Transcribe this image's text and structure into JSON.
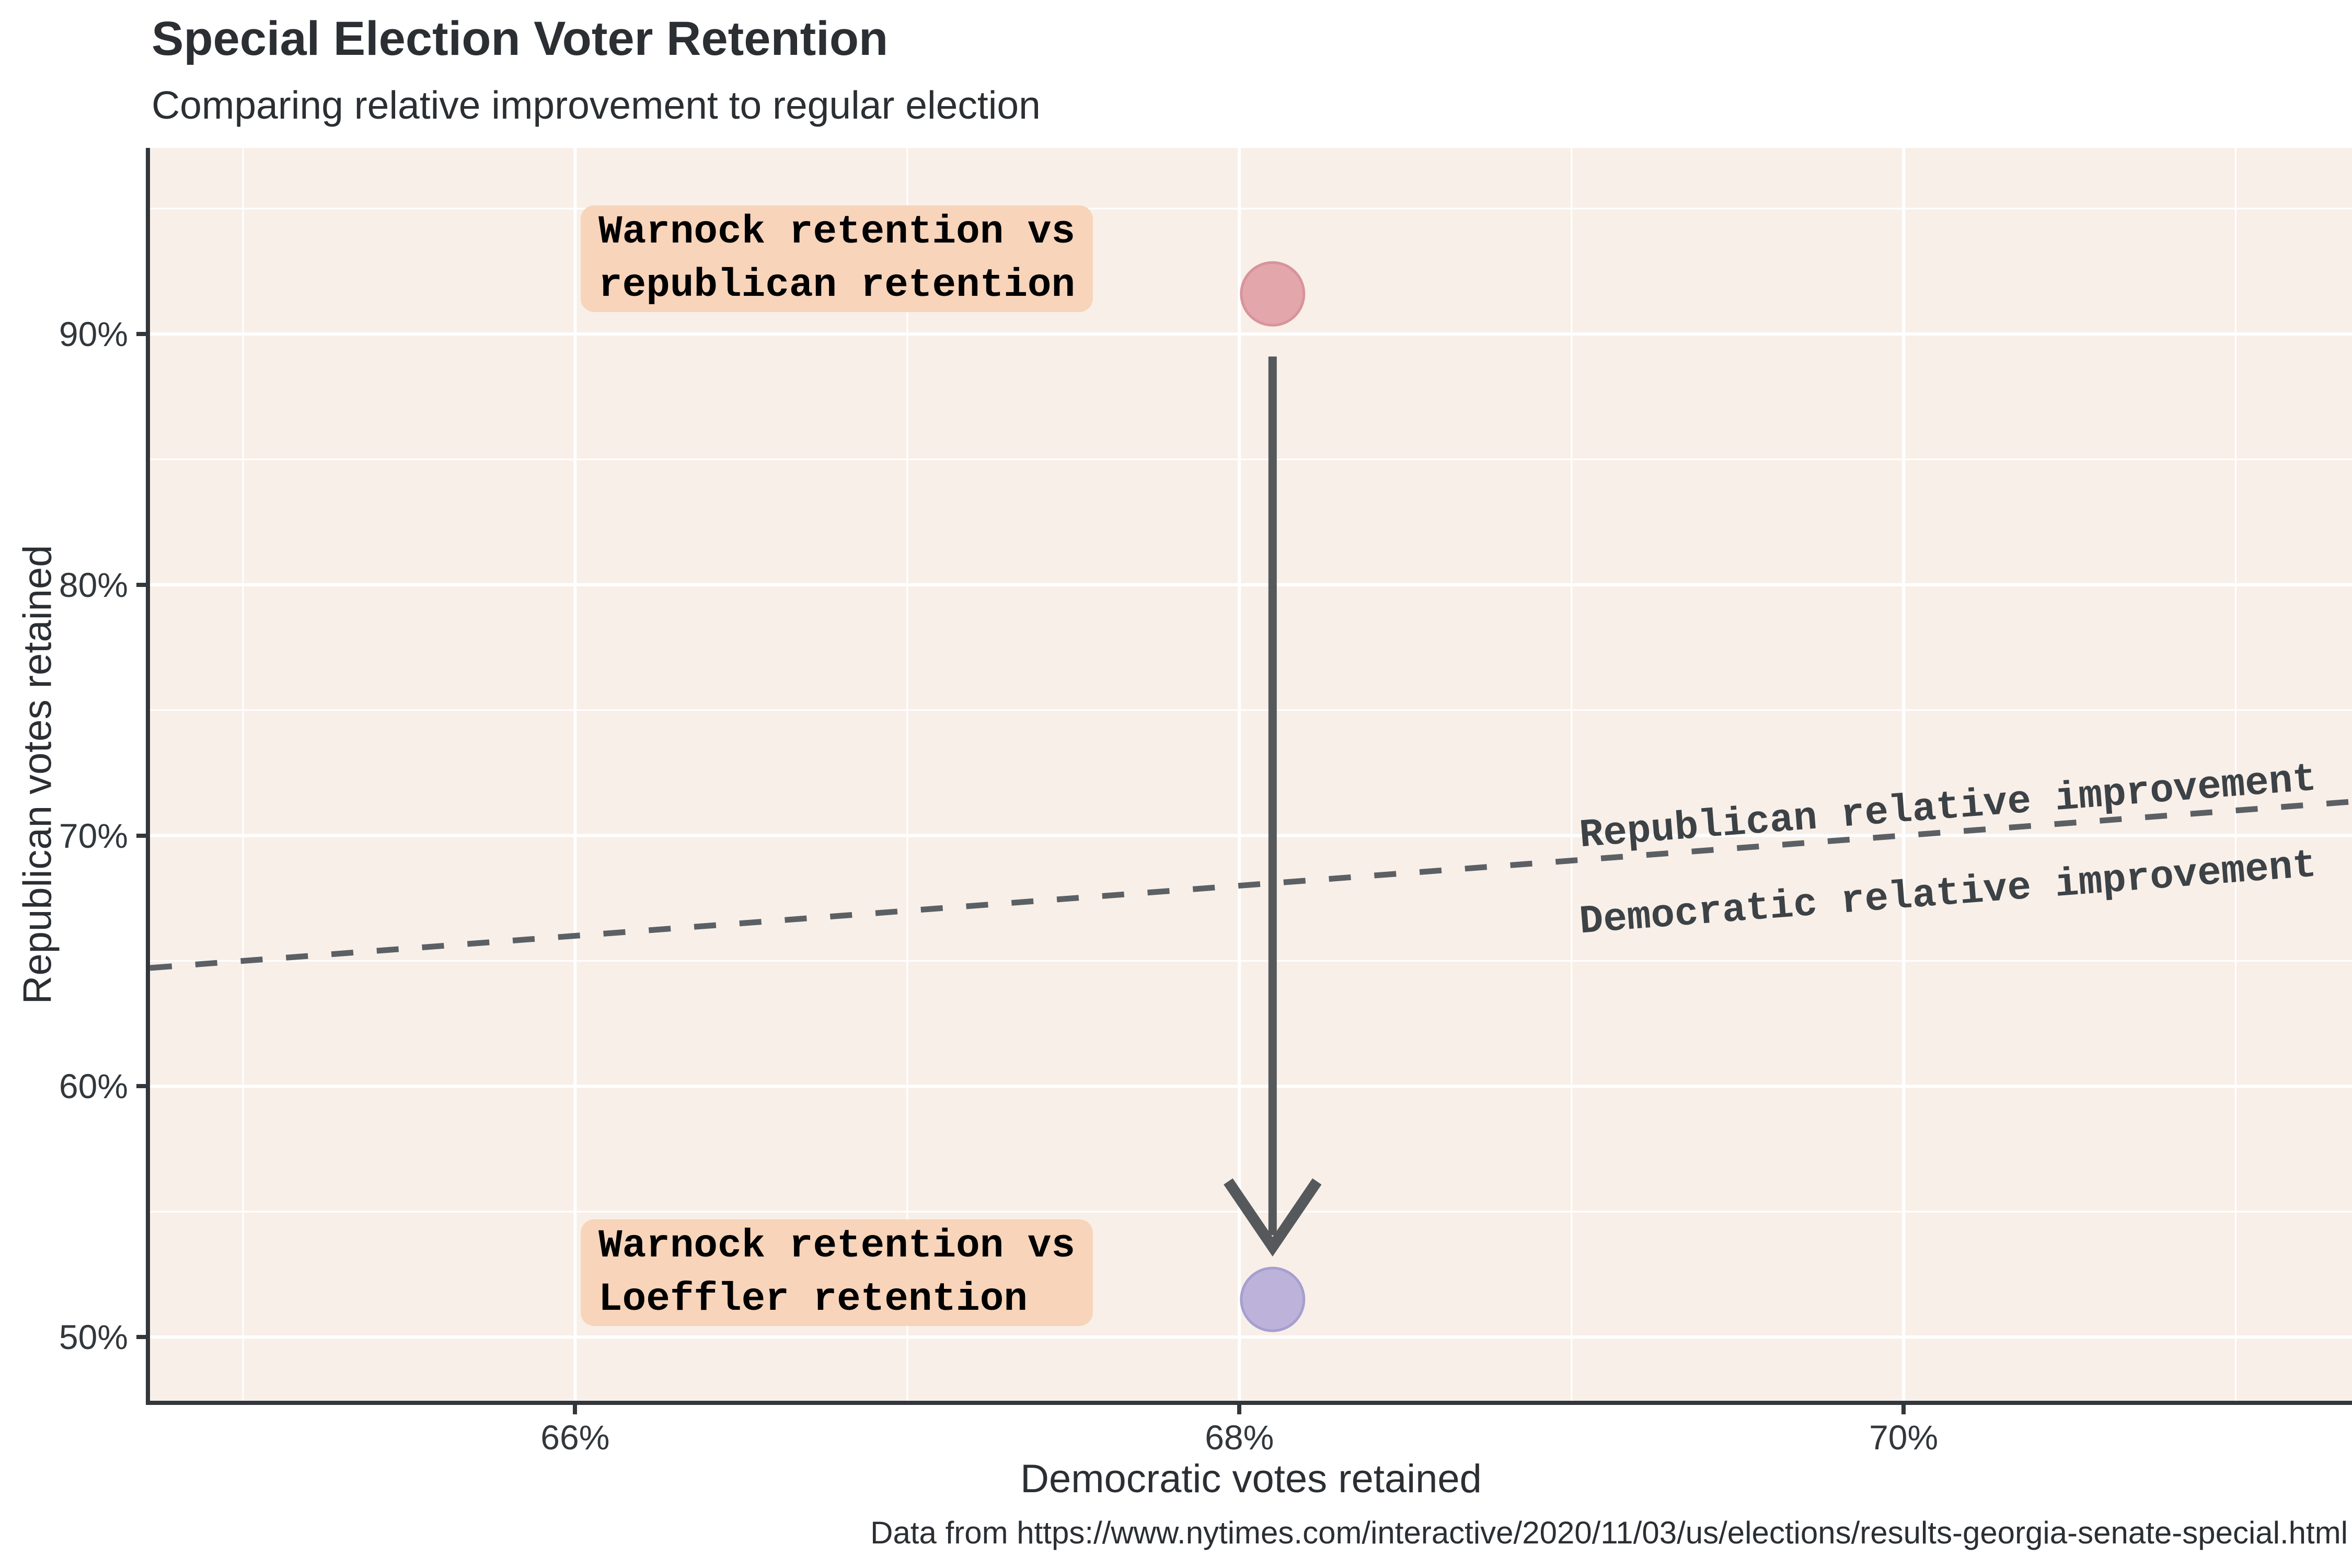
{
  "header": {
    "title": "Special Election Voter Retention",
    "subtitle": "Comparing relative improvement to regular election"
  },
  "caption": "Data from https://www.nytimes.com/interactive/2020/11/03/us/elections/results-georgia-senate-special.html",
  "chart_data": {
    "type": "scatter",
    "title": "Special Election Voter Retention",
    "subtitle": "Comparing relative improvement to regular election",
    "xlabel": "Democratic votes retained",
    "ylabel": "Republican votes retained",
    "xlim": [
      64.72,
      71.35
    ],
    "ylim": [
      47.46,
      97.42
    ],
    "x_ticks": [
      66,
      68,
      70
    ],
    "x_tick_labels": [
      "66%",
      "68%",
      "70%"
    ],
    "x_minor_ticks": [
      65,
      67,
      69,
      71
    ],
    "y_ticks": [
      90,
      80,
      70,
      60,
      50
    ],
    "y_tick_labels": [
      "90%",
      "80%",
      "70%",
      "60%",
      "50%"
    ],
    "y_minor_ticks": [
      95,
      85,
      75,
      65,
      55
    ],
    "grid": true,
    "legend": false,
    "points": [
      {
        "name": "warnock-vs-republican",
        "x": 68.1,
        "y": 91.6,
        "fill": "#e2a6ab",
        "stroke": "#d8939b",
        "annotation_line1": "Warnock retention vs",
        "annotation_line2": "republican retention"
      },
      {
        "name": "warnock-vs-loeffler",
        "x": 68.1,
        "y": 51.5,
        "fill": "#bdb3da",
        "stroke": "#a79ed0",
        "annotation_line1": "Warnock retention vs",
        "annotation_line2": "Loeffler retention"
      }
    ],
    "reference_line": {
      "type": "identity",
      "style": "dashed",
      "color": "#5b6065",
      "x1": 64.72,
      "y1": 64.72,
      "x2": 71.35,
      "y2": 71.35,
      "label_above": "Republican relative improvement",
      "label_below": "Democratic relative improvement"
    },
    "arrow": {
      "color": "#55595c",
      "from": {
        "x": 68.1,
        "y": 89.1
      },
      "to": {
        "x": 68.1,
        "y": 53.6
      }
    }
  },
  "colors": {
    "panel_background": "#f8efe8",
    "grid": "#ffffff",
    "axis": "#32373b",
    "annotation_background": "#f7d4ba"
  }
}
